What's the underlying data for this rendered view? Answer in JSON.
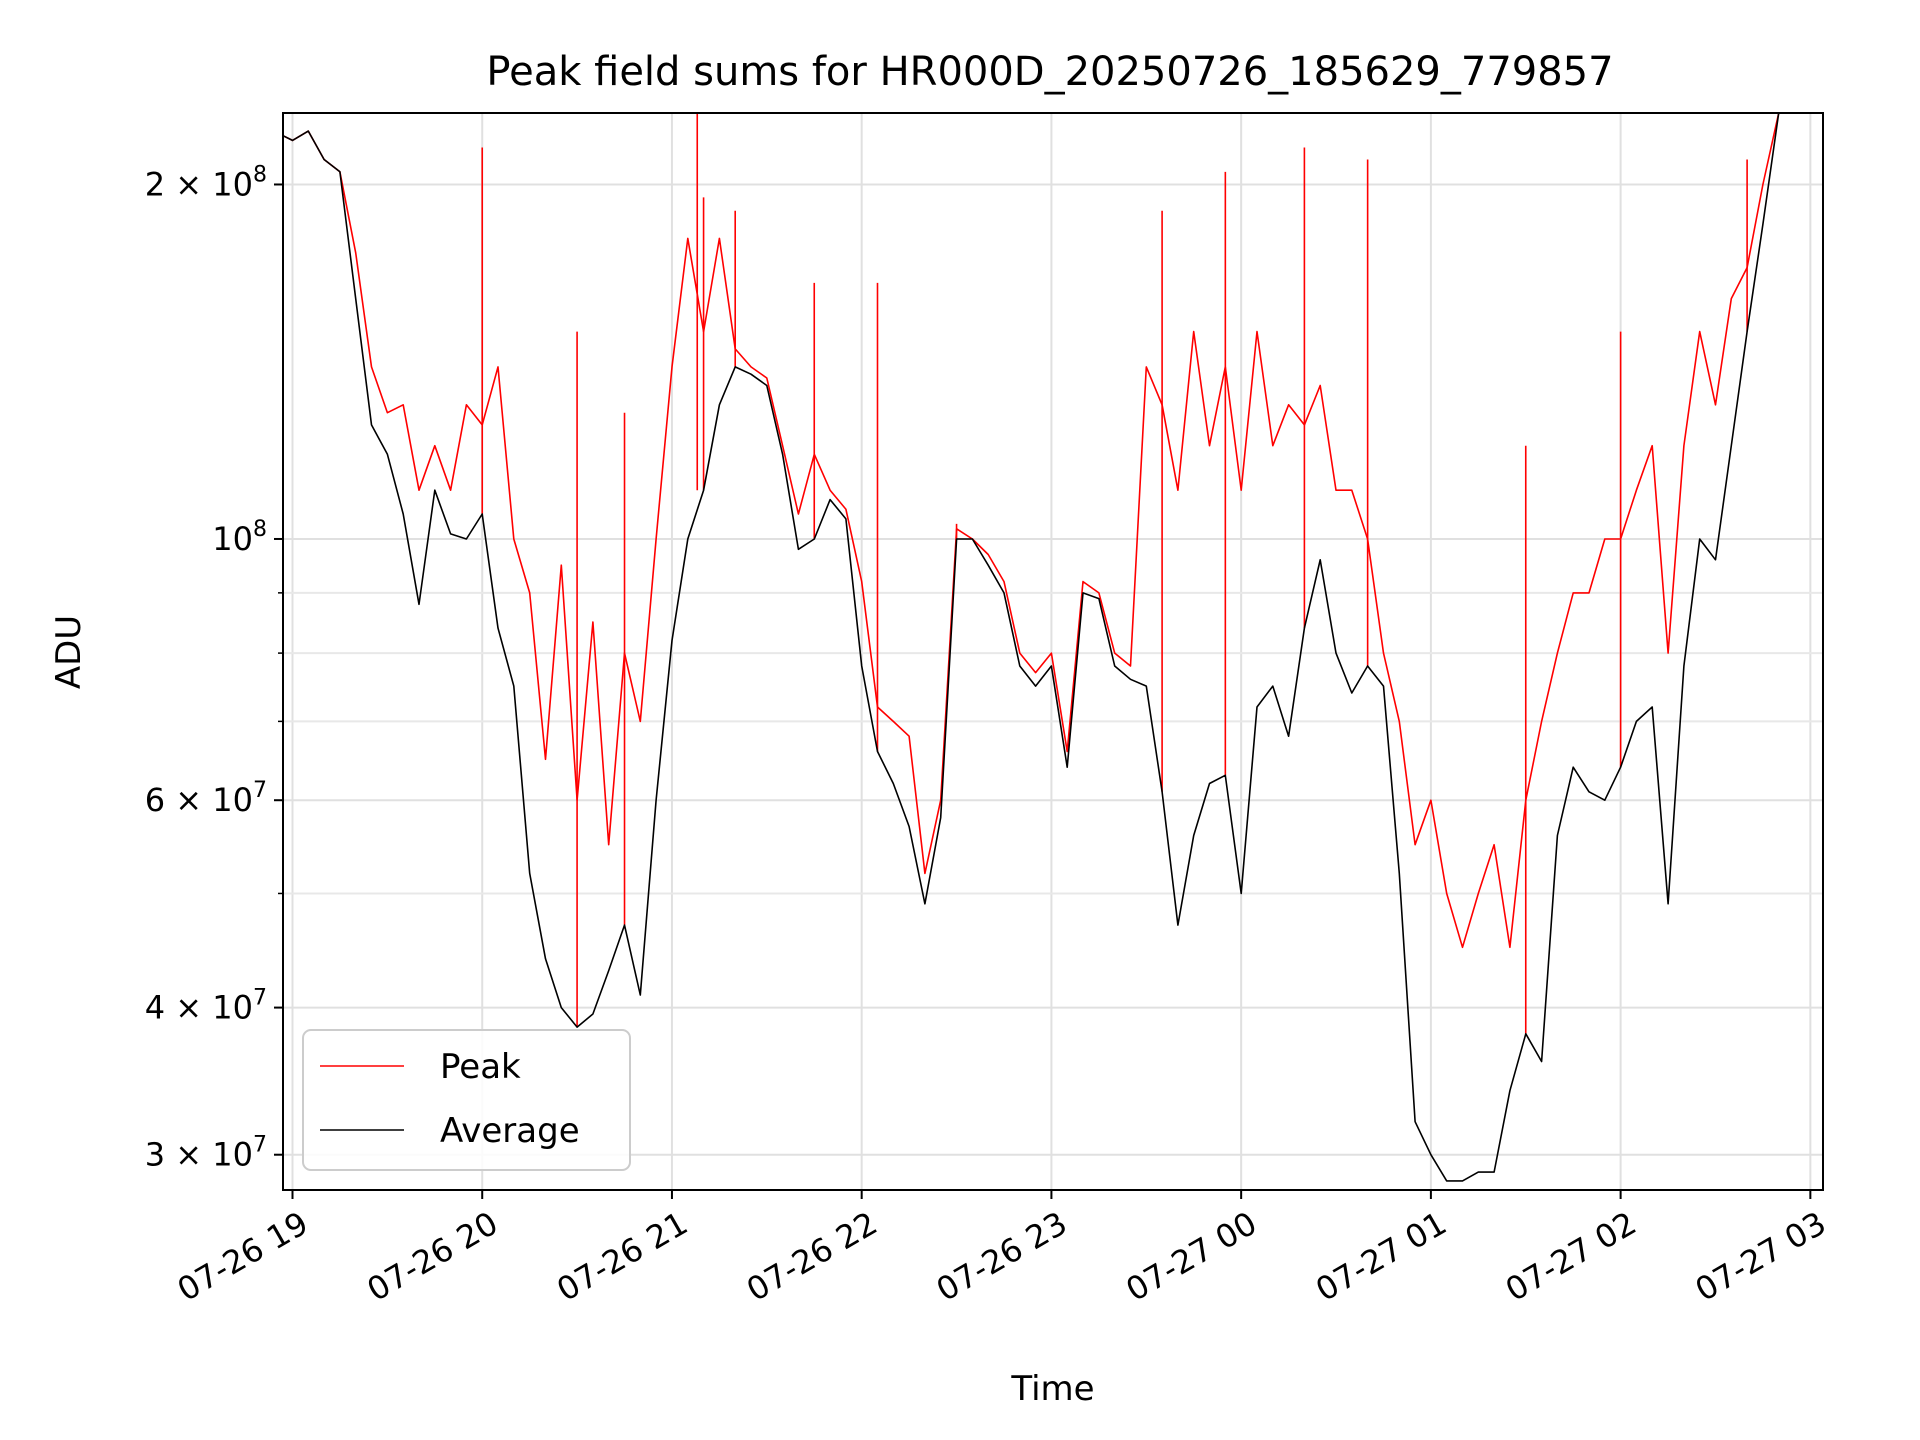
{
  "chart_data": {
    "type": "line",
    "title": "Peak field sums for HR000D_20250726_185629_779857",
    "xlabel": "Time",
    "ylabel": "ADU",
    "yscale": "log",
    "ylim": [
      28000000,
      230000000
    ],
    "xlim": [
      "07-26 18:57",
      "07-27 03:04"
    ],
    "grid": true,
    "legend_position": "lower-left",
    "x_ticks": [
      "07-26 19",
      "07-26 20",
      "07-26 21",
      "07-26 22",
      "07-26 23",
      "07-27 00",
      "07-27 01",
      "07-27 02",
      "07-27 03"
    ],
    "y_ticks": [
      {
        "value": 30000000,
        "mantissa": "3",
        "exp": "7"
      },
      {
        "value": 40000000,
        "mantissa": "4",
        "exp": "7"
      },
      {
        "value": 60000000,
        "mantissa": "6",
        "exp": "7"
      },
      {
        "value": 100000000,
        "mantissa": "",
        "exp": "8"
      },
      {
        "value": 200000000,
        "mantissa": "2",
        "exp": "8"
      }
    ],
    "times_symbol": "×",
    "base": "10",
    "y_minor": [
      50000000,
      70000000,
      80000000,
      90000000
    ],
    "series": [
      {
        "name": "Average",
        "color": "#000000",
        "x": [
          "07-26 18:57",
          "07-26 19:00",
          "07-26 19:05",
          "07-26 19:10",
          "07-26 19:15",
          "07-26 19:20",
          "07-26 19:25",
          "07-26 19:30",
          "07-26 19:35",
          "07-26 19:40",
          "07-26 19:45",
          "07-26 19:50",
          "07-26 19:55",
          "07-26 20:00",
          "07-26 20:05",
          "07-26 20:10",
          "07-26 20:15",
          "07-26 20:20",
          "07-26 20:25",
          "07-26 20:30",
          "07-26 20:35",
          "07-26 20:40",
          "07-26 20:45",
          "07-26 20:50",
          "07-26 20:55",
          "07-26 21:00",
          "07-26 21:05",
          "07-26 21:10",
          "07-26 21:15",
          "07-26 21:20",
          "07-26 21:25",
          "07-26 21:30",
          "07-26 21:35",
          "07-26 21:40",
          "07-26 21:45",
          "07-26 21:50",
          "07-26 21:55",
          "07-26 22:00",
          "07-26 22:05",
          "07-26 22:10",
          "07-26 22:15",
          "07-26 22:20",
          "07-26 22:25",
          "07-26 22:30",
          "07-26 22:35",
          "07-26 22:40",
          "07-26 22:45",
          "07-26 22:50",
          "07-26 22:55",
          "07-26 23:00",
          "07-26 23:05",
          "07-26 23:10",
          "07-26 23:15",
          "07-26 23:20",
          "07-26 23:25",
          "07-26 23:30",
          "07-26 23:35",
          "07-26 23:40",
          "07-26 23:45",
          "07-26 23:50",
          "07-26 23:55",
          "07-27 00:00",
          "07-27 00:05",
          "07-27 00:10",
          "07-27 00:15",
          "07-27 00:20",
          "07-27 00:25",
          "07-27 00:30",
          "07-27 00:35",
          "07-27 00:40",
          "07-27 00:45",
          "07-27 00:50",
          "07-27 00:55",
          "07-27 01:00",
          "07-27 01:05",
          "07-27 01:10",
          "07-27 01:15",
          "07-27 01:20",
          "07-27 01:25",
          "07-27 01:30",
          "07-27 01:35",
          "07-27 01:40",
          "07-27 01:45",
          "07-27 01:50",
          "07-27 01:55",
          "07-27 02:00",
          "07-27 02:05",
          "07-27 02:10",
          "07-27 02:15",
          "07-27 02:20",
          "07-27 02:25",
          "07-27 02:30",
          "07-27 02:35",
          "07-27 02:40",
          "07-27 02:45",
          "07-27 02:50",
          "07-27 02:55",
          "07-27 03:00"
        ],
        "y": [
          220000000,
          218000000,
          222000000,
          210000000,
          205000000,
          160000000,
          125000000,
          118000000,
          105000000,
          88000000,
          110000000,
          101000000,
          100000000,
          105000000,
          84000000,
          75000000,
          52000000,
          44000000,
          40000000,
          38500000,
          39500000,
          43000000,
          47000000,
          41000000,
          60000000,
          82000000,
          100000000,
          110000000,
          130000000,
          140000000,
          138000000,
          135000000,
          118000000,
          98000000,
          100000000,
          108000000,
          104000000,
          78000000,
          66000000,
          62000000,
          57000000,
          49000000,
          58000000,
          100000000,
          100000000,
          95000000,
          90000000,
          78000000,
          75000000,
          78000000,
          64000000,
          90000000,
          89000000,
          78000000,
          76000000,
          75000000,
          61000000,
          47000000,
          56000000,
          62000000,
          63000000,
          50000000,
          72000000,
          75000000,
          68000000,
          84000000,
          96000000,
          80000000,
          74000000,
          78000000,
          75000000,
          52000000,
          32000000,
          30000000,
          28500000,
          28500000,
          29000000,
          29000000,
          34000000,
          38000000,
          36000000,
          56000000,
          64000000,
          61000000,
          60000000,
          64000000,
          70000000,
          72000000,
          49000000,
          78000000,
          100000000,
          96000000,
          120000000,
          150000000,
          185000000,
          230000000,
          230000000,
          230000000
        ]
      },
      {
        "name": "Peak",
        "color": "#ff0000",
        "x": [
          "07-26 18:57",
          "07-26 19:00",
          "07-26 19:05",
          "07-26 19:10",
          "07-26 19:15",
          "07-26 19:20",
          "07-26 19:25",
          "07-26 19:30",
          "07-26 19:35",
          "07-26 19:40",
          "07-26 19:45",
          "07-26 19:50",
          "07-26 19:55",
          "07-26 20:00",
          "07-26 20:05",
          "07-26 20:10",
          "07-26 20:15",
          "07-26 20:20",
          "07-26 20:25",
          "07-26 20:30",
          "07-26 20:35",
          "07-26 20:40",
          "07-26 20:45",
          "07-26 20:50",
          "07-26 20:55",
          "07-26 21:00",
          "07-26 21:05",
          "07-26 21:10",
          "07-26 21:15",
          "07-26 21:20",
          "07-26 21:25",
          "07-26 21:30",
          "07-26 21:35",
          "07-26 21:40",
          "07-26 21:45",
          "07-26 21:50",
          "07-26 21:55",
          "07-26 22:00",
          "07-26 22:05",
          "07-26 22:10",
          "07-26 22:15",
          "07-26 22:20",
          "07-26 22:25",
          "07-26 22:30",
          "07-26 22:35",
          "07-26 22:40",
          "07-26 22:45",
          "07-26 22:50",
          "07-26 22:55",
          "07-26 23:00",
          "07-26 23:05",
          "07-26 23:10",
          "07-26 23:15",
          "07-26 23:20",
          "07-26 23:25",
          "07-26 23:30",
          "07-26 23:35",
          "07-26 23:40",
          "07-26 23:45",
          "07-26 23:50",
          "07-26 23:55",
          "07-27 00:00",
          "07-27 00:05",
          "07-27 00:10",
          "07-27 00:15",
          "07-27 00:20",
          "07-27 00:25",
          "07-27 00:30",
          "07-27 00:35",
          "07-27 00:40",
          "07-27 00:45",
          "07-27 00:50",
          "07-27 00:55",
          "07-27 01:00",
          "07-27 01:05",
          "07-27 01:10",
          "07-27 01:15",
          "07-27 01:20",
          "07-27 01:25",
          "07-27 01:30",
          "07-27 01:35",
          "07-27 01:40",
          "07-27 01:45",
          "07-27 01:50",
          "07-27 01:55",
          "07-27 02:00",
          "07-27 02:05",
          "07-27 02:10",
          "07-27 02:15",
          "07-27 02:20",
          "07-27 02:25",
          "07-27 02:30",
          "07-27 02:35",
          "07-27 02:40",
          "07-27 02:45",
          "07-27 02:50",
          "07-27 02:55",
          "07-27 03:00"
        ],
        "y": [
          220000000,
          218000000,
          222000000,
          210000000,
          205000000,
          175000000,
          140000000,
          128000000,
          130000000,
          110000000,
          120000000,
          110000000,
          130000000,
          125000000,
          140000000,
          100000000,
          90000000,
          65000000,
          95000000,
          60000000,
          85000000,
          55000000,
          80000000,
          70000000,
          100000000,
          140000000,
          180000000,
          150000000,
          180000000,
          145000000,
          140000000,
          137000000,
          120000000,
          105000000,
          118000000,
          110000000,
          106000000,
          92000000,
          72000000,
          70000000,
          68000000,
          52000000,
          60000000,
          102000000,
          100000000,
          97000000,
          92000000,
          80000000,
          77000000,
          80000000,
          66000000,
          92000000,
          90000000,
          80000000,
          78000000,
          140000000,
          130000000,
          110000000,
          150000000,
          120000000,
          140000000,
          110000000,
          150000000,
          120000000,
          130000000,
          125000000,
          135000000,
          110000000,
          110000000,
          100000000,
          80000000,
          70000000,
          55000000,
          60000000,
          50000000,
          45000000,
          50000000,
          55000000,
          45000000,
          60000000,
          70000000,
          80000000,
          90000000,
          90000000,
          100000000,
          100000000,
          110000000,
          120000000,
          80000000,
          120000000,
          150000000,
          130000000,
          160000000,
          170000000,
          200000000,
          230000000,
          230000000,
          230000000
        ]
      }
    ],
    "spikes": {
      "series": "Peak",
      "x": [
        "07-26 20:00",
        "07-26 20:30",
        "07-26 20:45",
        "07-26 21:08",
        "07-26 21:10",
        "07-26 21:20",
        "07-26 21:45",
        "07-26 22:05",
        "07-26 22:30",
        "07-26 23:35",
        "07-26 23:55",
        "07-27 00:20",
        "07-27 00:40",
        "07-27 01:30",
        "07-27 02:00",
        "07-27 02:40"
      ],
      "y": [
        215000000,
        150000000,
        128000000,
        230000000,
        195000000,
        190000000,
        165000000,
        165000000,
        103000000,
        190000000,
        205000000,
        215000000,
        210000000,
        120000000,
        150000000,
        210000000
      ]
    }
  }
}
